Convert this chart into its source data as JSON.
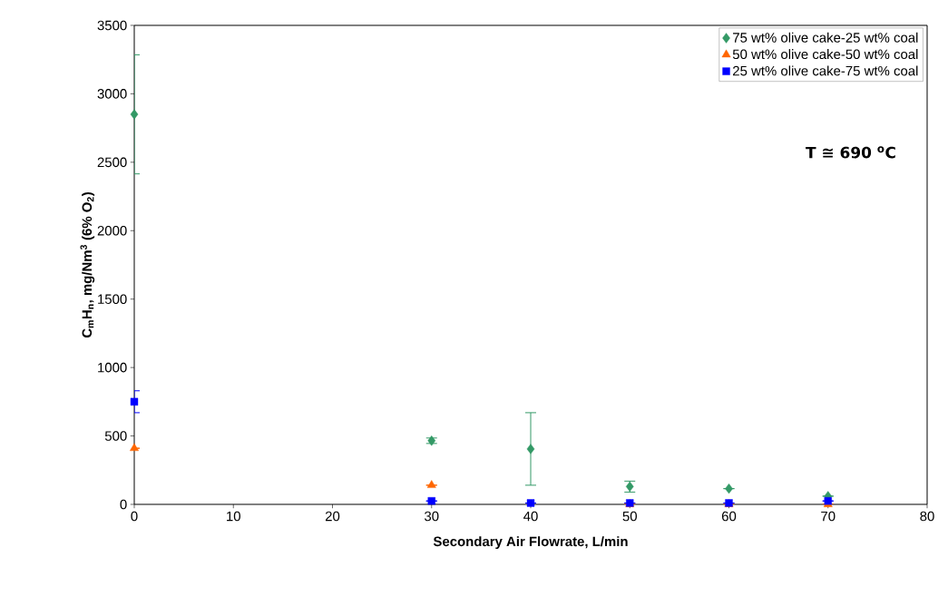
{
  "chart_data": {
    "type": "scatter",
    "xlabel": "Secondary Air Flowrate, L/min",
    "ylabel": "C$_{m}$H$_{n}$, mg/Nm$^{3}$ (6% O$_{2}$)",
    "annotations": [
      "T ≅ 690 $^{o}$C"
    ],
    "x": [
      0,
      30,
      40,
      50,
      60,
      70
    ],
    "series": [
      {
        "name": "75 wt% olive cake-25 wt% coal",
        "color": "#339966",
        "marker": "diamond",
        "values": [
          2850,
          465,
          405,
          130,
          115,
          60
        ],
        "errors": [
          435,
          20,
          265,
          40,
          null,
          null
        ]
      },
      {
        "name": "50 wt% olive cake-50 wt% coal",
        "color": "#ff6600",
        "marker": "triangle",
        "values": [
          410,
          140,
          null,
          0,
          0,
          0
        ],
        "errors": [
          null,
          null,
          null,
          null,
          null,
          null
        ]
      },
      {
        "name": "25 wt% olive cake-75 wt% coal",
        "color": "#0000ff",
        "marker": "square",
        "values": [
          750,
          25,
          10,
          10,
          10,
          25
        ],
        "errors": [
          80,
          null,
          null,
          null,
          null,
          null
        ]
      }
    ],
    "xlim": [
      0,
      80
    ],
    "xticks": [
      0,
      10,
      20,
      30,
      40,
      50,
      60,
      70,
      80
    ],
    "ylim": [
      0,
      3500
    ],
    "yticks": [
      0,
      500,
      1000,
      1500,
      2000,
      2500,
      3000,
      3500
    ],
    "grid": false,
    "legend": "top right"
  }
}
